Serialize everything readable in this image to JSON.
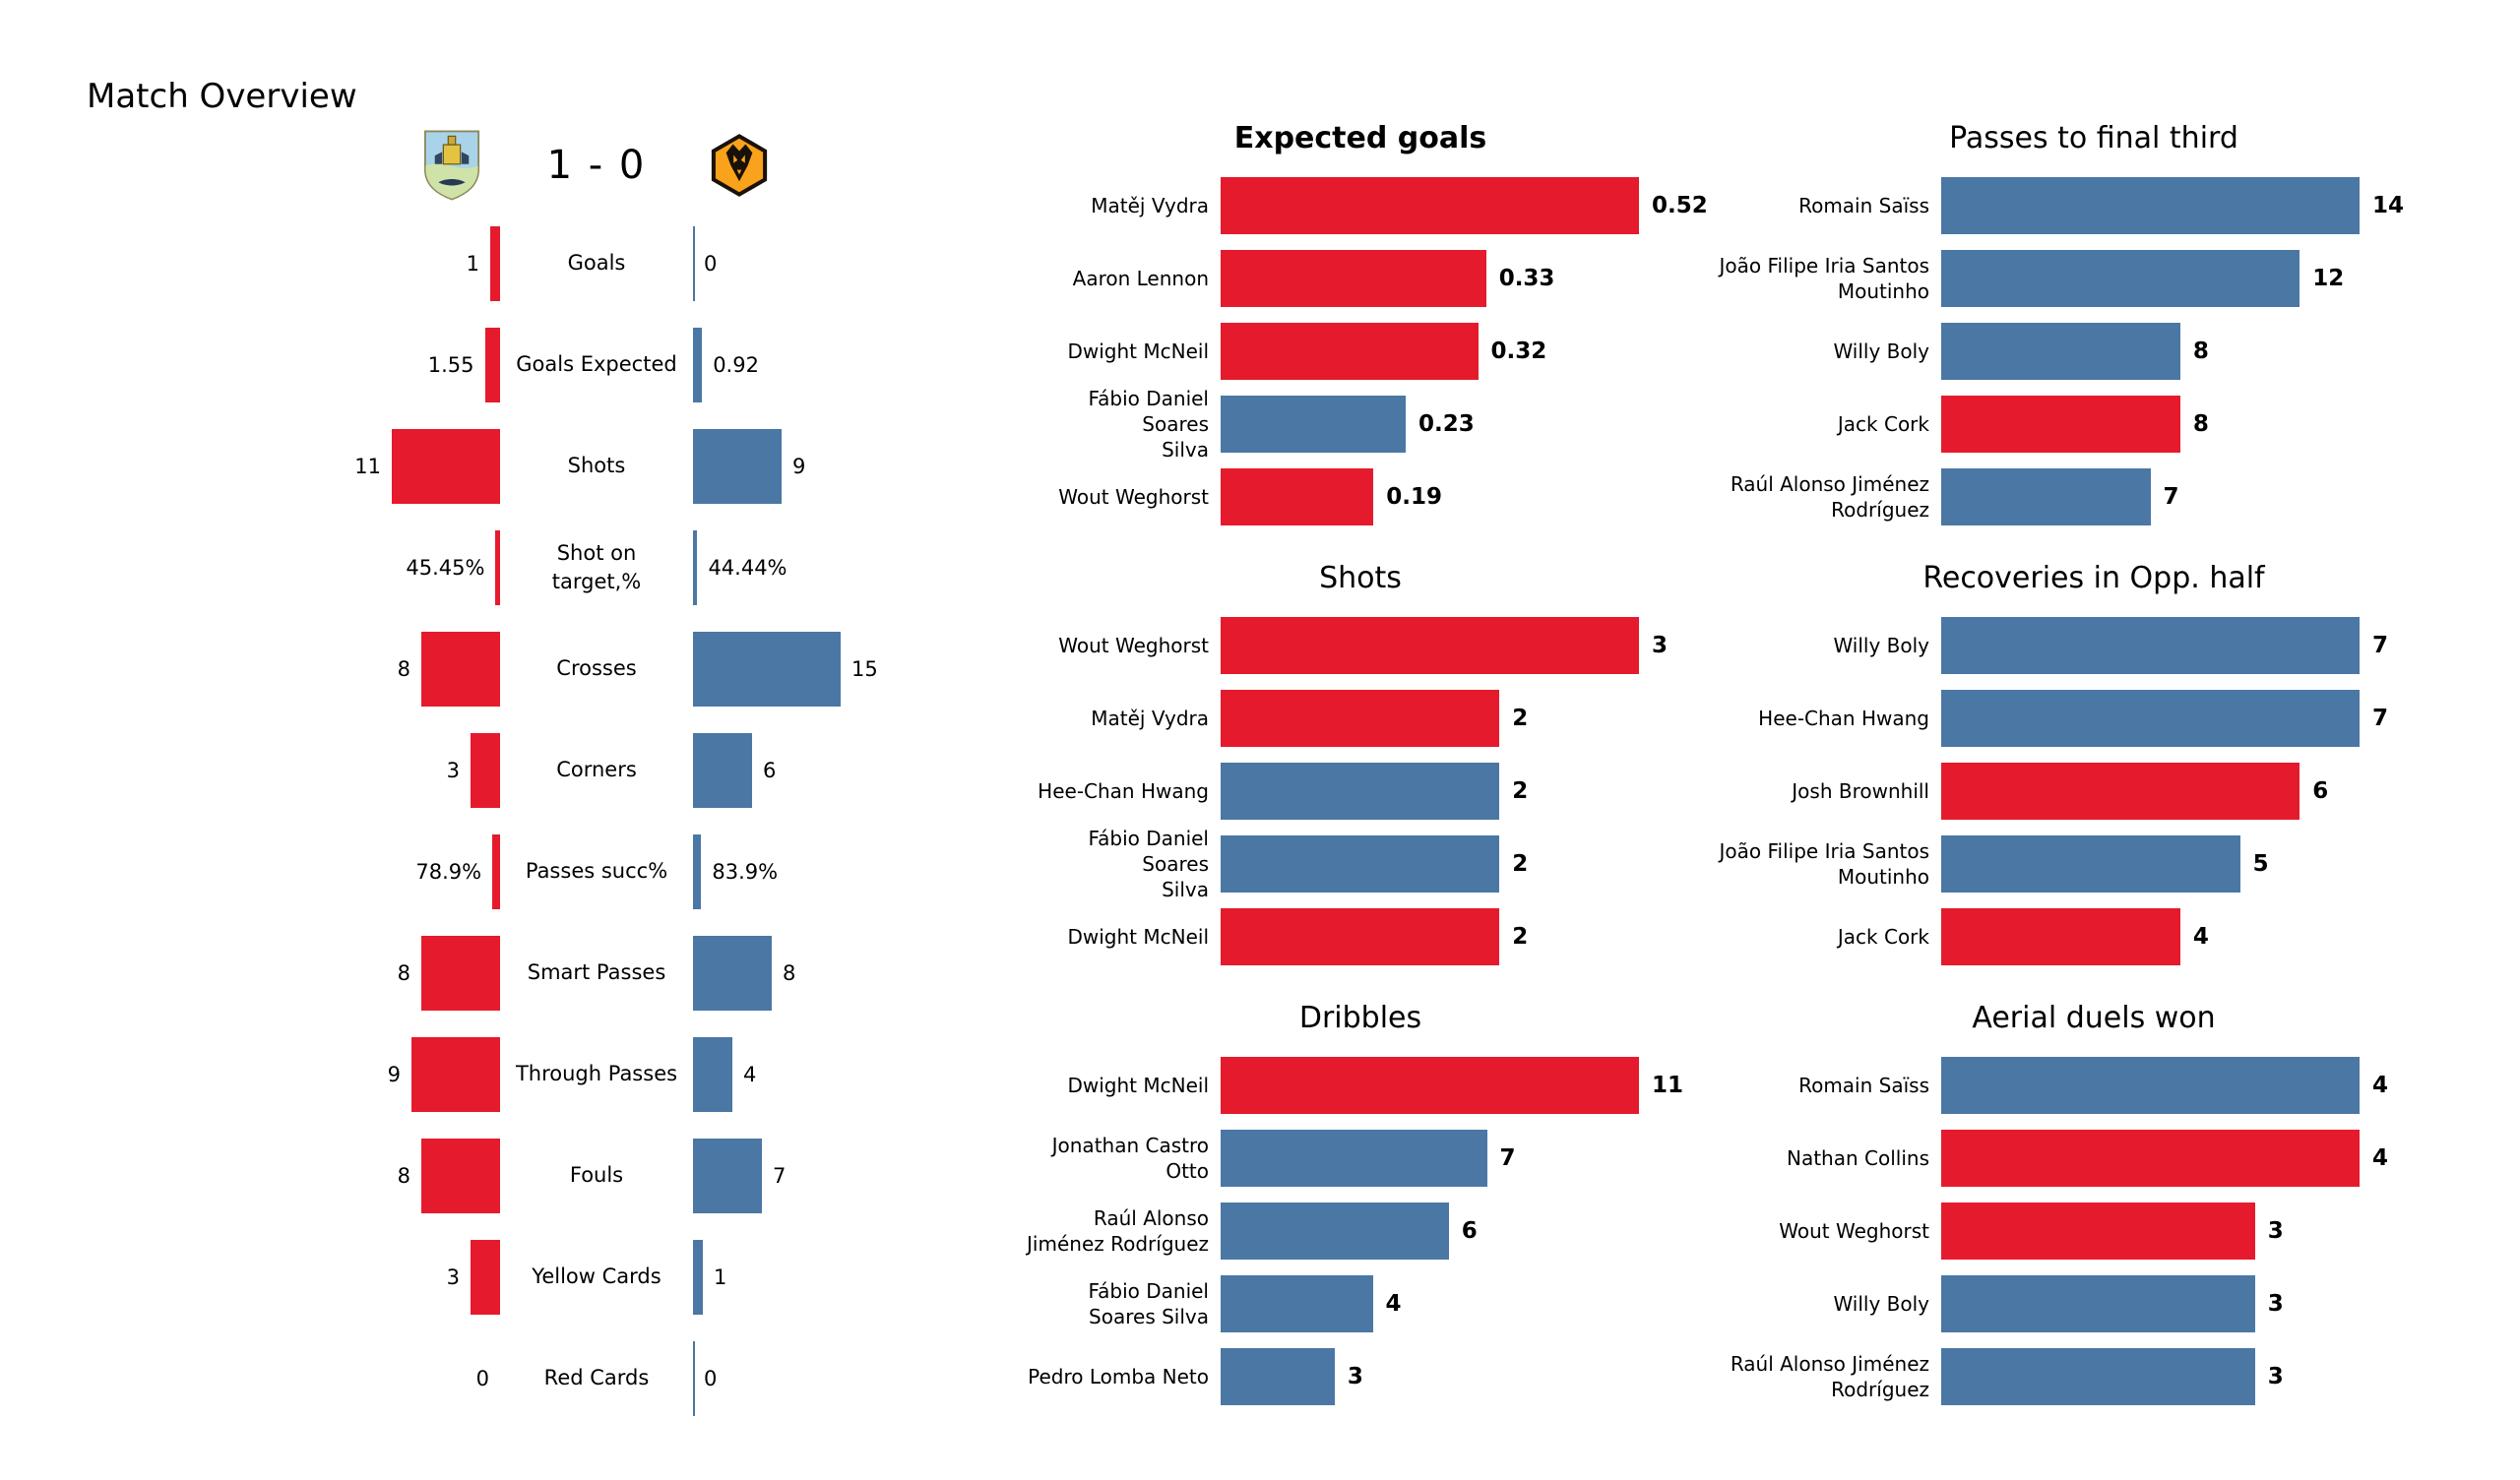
{
  "page": {
    "title": "Match Overview"
  },
  "colors": {
    "home": "#e51b2d",
    "away": "#4b77a5",
    "text": "#000000"
  },
  "icons": {
    "home_logo": "burnley-crest",
    "away_logo": "wolves-crest"
  },
  "scoreboard": {
    "score": "1 - 0"
  },
  "chart_data": [
    {
      "id": "team-comparison",
      "type": "paired-bar",
      "legend_position": "none",
      "grid": false,
      "rows": [
        {
          "label": "Goals",
          "home": 1,
          "away": 0,
          "home_display": "1",
          "away_display": "0",
          "kind": "count"
        },
        {
          "label": "Goals Expected",
          "home": 1.55,
          "away": 0.92,
          "home_display": "1.55",
          "away_display": "0.92",
          "kind": "count"
        },
        {
          "label": "Shots",
          "home": 11,
          "away": 9,
          "home_display": "11",
          "away_display": "9",
          "kind": "count"
        },
        {
          "label": "Shot on\ntarget,%",
          "home": 45.45,
          "away": 44.44,
          "home_display": "45.45%",
          "away_display": "44.44%",
          "kind": "percent"
        },
        {
          "label": "Crosses",
          "home": 8,
          "away": 15,
          "home_display": "8",
          "away_display": "15",
          "kind": "count"
        },
        {
          "label": "Corners",
          "home": 3,
          "away": 6,
          "home_display": "3",
          "away_display": "6",
          "kind": "count"
        },
        {
          "label": "Passes succ%",
          "home": 78.9,
          "away": 83.9,
          "home_display": "78.9%",
          "away_display": "83.9%",
          "kind": "percent"
        },
        {
          "label": "Smart Passes",
          "home": 8,
          "away": 8,
          "home_display": "8",
          "away_display": "8",
          "kind": "count"
        },
        {
          "label": "Through Passes",
          "home": 9,
          "away": 4,
          "home_display": "9",
          "away_display": "4",
          "kind": "count"
        },
        {
          "label": "Fouls",
          "home": 8,
          "away": 7,
          "home_display": "8",
          "away_display": "7",
          "kind": "count"
        },
        {
          "label": "Yellow Cards",
          "home": 3,
          "away": 1,
          "home_display": "3",
          "away_display": "1",
          "kind": "count"
        },
        {
          "label": "Red Cards",
          "home": 0,
          "away": 0,
          "home_display": "0",
          "away_display": "0",
          "kind": "count"
        }
      ]
    },
    {
      "id": "expected-goals",
      "type": "bar",
      "orientation": "horizontal",
      "column": "mid",
      "title": "Expected goals",
      "title_bold": true,
      "xlim": [
        0,
        0.52
      ],
      "grid": false,
      "categories": [
        "Matěj Vydra",
        "Aaron Lennon",
        "Dwight McNeil",
        "Fábio Daniel Soares\nSilva",
        "Wout Weghorst"
      ],
      "values": [
        0.52,
        0.33,
        0.32,
        0.23,
        0.19
      ],
      "value_labels": [
        "0.52",
        "0.33",
        "0.32",
        "0.23",
        "0.19"
      ],
      "teams": [
        "home",
        "home",
        "home",
        "away",
        "home"
      ]
    },
    {
      "id": "shots-players",
      "type": "bar",
      "orientation": "horizontal",
      "column": "mid",
      "title": "Shots",
      "title_bold": false,
      "xlim": [
        0,
        3
      ],
      "grid": false,
      "categories": [
        "Wout Weghorst",
        "Matěj Vydra",
        "Hee-Chan Hwang",
        "Fábio Daniel Soares\nSilva",
        "Dwight McNeil"
      ],
      "values": [
        3,
        2,
        2,
        2,
        2
      ],
      "value_labels": [
        "3",
        "2",
        "2",
        "2",
        "2"
      ],
      "teams": [
        "home",
        "home",
        "away",
        "away",
        "home"
      ]
    },
    {
      "id": "dribbles",
      "type": "bar",
      "orientation": "horizontal",
      "column": "mid",
      "title": "Dribbles",
      "title_bold": false,
      "xlim": [
        0,
        11
      ],
      "grid": false,
      "categories": [
        "Dwight McNeil",
        "Jonathan Castro\nOtto",
        "Raúl Alonso\nJiménez Rodríguez",
        "Fábio Daniel\nSoares Silva",
        "Pedro Lomba Neto"
      ],
      "values": [
        11,
        7,
        6,
        4,
        3
      ],
      "value_labels": [
        "11",
        "7",
        "6",
        "4",
        "3"
      ],
      "teams": [
        "home",
        "away",
        "away",
        "away",
        "away"
      ]
    },
    {
      "id": "passes-to-final-third",
      "type": "bar",
      "orientation": "horizontal",
      "column": "right",
      "title": "Passes to final third",
      "title_bold": false,
      "xlim": [
        0,
        14
      ],
      "grid": false,
      "categories": [
        "Romain Saïss",
        "João Filipe Iria Santos\nMoutinho",
        "Willy Boly",
        "Jack Cork",
        "Raúl Alonso Jiménez\nRodríguez"
      ],
      "values": [
        14,
        12,
        8,
        8,
        7
      ],
      "value_labels": [
        "14",
        "12",
        "8",
        "8",
        "7"
      ],
      "teams": [
        "away",
        "away",
        "away",
        "home",
        "away"
      ]
    },
    {
      "id": "recoveries-in-opp-half",
      "type": "bar",
      "orientation": "horizontal",
      "column": "right",
      "title": "Recoveries in Opp. half",
      "title_bold": false,
      "xlim": [
        0,
        7
      ],
      "grid": false,
      "categories": [
        "Willy Boly",
        "Hee-Chan Hwang",
        "Josh Brownhill",
        "João Filipe Iria Santos\nMoutinho",
        "Jack Cork"
      ],
      "values": [
        7,
        7,
        6,
        5,
        4
      ],
      "value_labels": [
        "7",
        "7",
        "6",
        "5",
        "4"
      ],
      "teams": [
        "away",
        "away",
        "home",
        "away",
        "home"
      ]
    },
    {
      "id": "aerial-duels-won",
      "type": "bar",
      "orientation": "horizontal",
      "column": "right",
      "title": "Aerial duels won",
      "title_bold": false,
      "xlim": [
        0,
        4
      ],
      "grid": false,
      "categories": [
        "Romain Saïss",
        "Nathan Collins",
        "Wout Weghorst",
        "Willy Boly",
        "Raúl Alonso Jiménez\nRodríguez"
      ],
      "values": [
        4,
        4,
        3,
        3,
        3
      ],
      "value_labels": [
        "4",
        "4",
        "3",
        "3",
        "3"
      ],
      "teams": [
        "away",
        "home",
        "home",
        "away",
        "away"
      ]
    }
  ]
}
